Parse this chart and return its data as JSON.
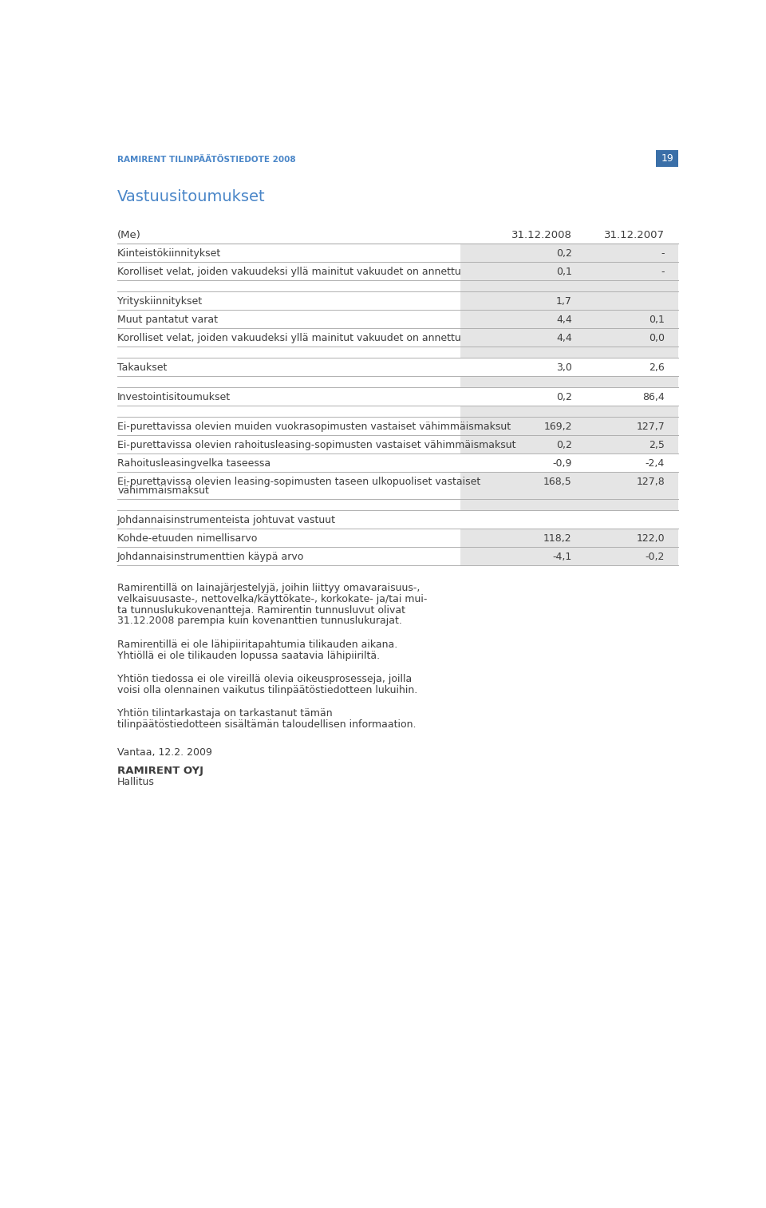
{
  "header_color": "#4a86c8",
  "text_color": "#3d3d3d",
  "dark_text": "#222222",
  "page_title": "RAMIRENT TILINPÄÄTÖSTIEDOTE 2008",
  "section_title": "Vastuusitoumukset",
  "col_header": "(Me)",
  "col2008": "31.12.2008",
  "col2007": "31.12.2007",
  "rows": [
    {
      "label": "Kiinteistökiinnitykset",
      "v2008": "0,2",
      "v2007": "-",
      "shaded": true,
      "sep_before": true,
      "sep_after": true,
      "blank": false,
      "two_line": false
    },
    {
      "label": "Korolliset velat, joiden vakuudeksi yllä mainitut vakuudet on annettu",
      "v2008": "0,1",
      "v2007": "-",
      "shaded": true,
      "sep_before": false,
      "sep_after": true,
      "blank": false,
      "two_line": false
    },
    {
      "label": "",
      "v2008": "",
      "v2007": "",
      "shaded": false,
      "sep_before": false,
      "sep_after": false,
      "blank": true,
      "two_line": false
    },
    {
      "label": "Yrityskiinnitykset",
      "v2008": "1,7",
      "v2007": "",
      "shaded": true,
      "sep_before": true,
      "sep_after": true,
      "blank": false,
      "two_line": false
    },
    {
      "label": "Muut pantatut varat",
      "v2008": "4,4",
      "v2007": "0,1",
      "shaded": true,
      "sep_before": false,
      "sep_after": true,
      "blank": false,
      "two_line": false
    },
    {
      "label": "Korolliset velat, joiden vakuudeksi yllä mainitut vakuudet on annettu",
      "v2008": "4,4",
      "v2007": "0,0",
      "shaded": true,
      "sep_before": false,
      "sep_after": true,
      "blank": false,
      "two_line": false
    },
    {
      "label": "",
      "v2008": "",
      "v2007": "",
      "shaded": false,
      "sep_before": false,
      "sep_after": false,
      "blank": true,
      "two_line": false
    },
    {
      "label": "Takaukset",
      "v2008": "3,0",
      "v2007": "2,6",
      "shaded": false,
      "sep_before": true,
      "sep_after": true,
      "blank": false,
      "two_line": false
    },
    {
      "label": "",
      "v2008": "",
      "v2007": "",
      "shaded": false,
      "sep_before": false,
      "sep_after": false,
      "blank": true,
      "two_line": false
    },
    {
      "label": "Investointisitoumukset",
      "v2008": "0,2",
      "v2007": "86,4",
      "shaded": false,
      "sep_before": true,
      "sep_after": true,
      "blank": false,
      "two_line": false
    },
    {
      "label": "",
      "v2008": "",
      "v2007": "",
      "shaded": false,
      "sep_before": false,
      "sep_after": false,
      "blank": true,
      "two_line": false
    },
    {
      "label": "Ei-purettavissa olevien muiden vuokrasopimusten vastaiset vähimmäismaksut",
      "v2008": "169,2",
      "v2007": "127,7",
      "shaded": true,
      "sep_before": true,
      "sep_after": true,
      "blank": false,
      "two_line": false
    },
    {
      "label": "Ei-purettavissa olevien rahoitusleasing-sopimusten vastaiset vähimmäismaksut",
      "v2008": "0,2",
      "v2007": "2,5",
      "shaded": true,
      "sep_before": false,
      "sep_after": true,
      "blank": false,
      "two_line": false
    },
    {
      "label": "Rahoitusleasingvelka taseessa",
      "v2008": "-0,9",
      "v2007": "-2,4",
      "shaded": false,
      "sep_before": false,
      "sep_after": true,
      "blank": false,
      "two_line": false
    },
    {
      "label": "Ei-purettavissa olevien leasing-sopimusten taseen ulkopuoliset vastaiset",
      "label2": "vähimmäismaksut",
      "v2008": "168,5",
      "v2007": "127,8",
      "shaded": true,
      "sep_before": false,
      "sep_after": true,
      "blank": false,
      "two_line": true
    },
    {
      "label": "",
      "v2008": "",
      "v2007": "",
      "shaded": false,
      "sep_before": false,
      "sep_after": false,
      "blank": true,
      "two_line": false
    },
    {
      "label": "Johdannaisinstrumenteista johtuvat vastuut",
      "v2008": "",
      "v2007": "",
      "shaded": false,
      "sep_before": true,
      "sep_after": true,
      "blank": false,
      "two_line": false
    },
    {
      "label": "Kohde-etuuden nimellisarvo",
      "v2008": "118,2",
      "v2007": "122,0",
      "shaded": true,
      "sep_before": false,
      "sep_after": true,
      "blank": false,
      "two_line": false
    },
    {
      "label": "Johdannaisinstrumenttien käypä arvo",
      "v2008": "-4,1",
      "v2007": "-0,2",
      "shaded": true,
      "sep_before": false,
      "sep_after": true,
      "blank": false,
      "two_line": false
    }
  ],
  "paragraphs": [
    [
      "Ramirentillä on lainajärjestelyjä, joihin liittyy omavaraisuus-,",
      "velkaisuusaste-, nettovelka/käyttökate-, korkokate- ja/tai mui-",
      "ta tunnuslukukovenantteja. Ramirentin tunnusluvut olivat",
      "31.12.2008 parempia kuin kovenanttien tunnuslukurajat."
    ],
    [
      "Ramirentillä ei ole lähipiiritapahtumia tilikauden aikana.",
      "Yhtiöllä ei ole tilikauden lopussa saatavia lähipiiriltä."
    ],
    [
      "Yhtiön tiedossa ei ole vireillä olevia oikeusprosesseja, joilla",
      "voisi olla olennainen vaikutus tilinpäätöstiedotteen lukuihin."
    ],
    [
      "Yhtiön tilintarkastaja on tarkastanut tämän",
      "tilinpäätöstiedotteen sisältämän taloudellisen informaation."
    ]
  ],
  "vantaa": "Vantaa, 12.2. 2009",
  "company": "RAMIRENT OYJ",
  "hallitus": "Hallitus",
  "page_number": "19",
  "shaded_color": "#e5e5e5",
  "separator_color": "#b0b0b0",
  "background_color": "#ffffff",
  "page_num_bg": "#3a6fa8"
}
